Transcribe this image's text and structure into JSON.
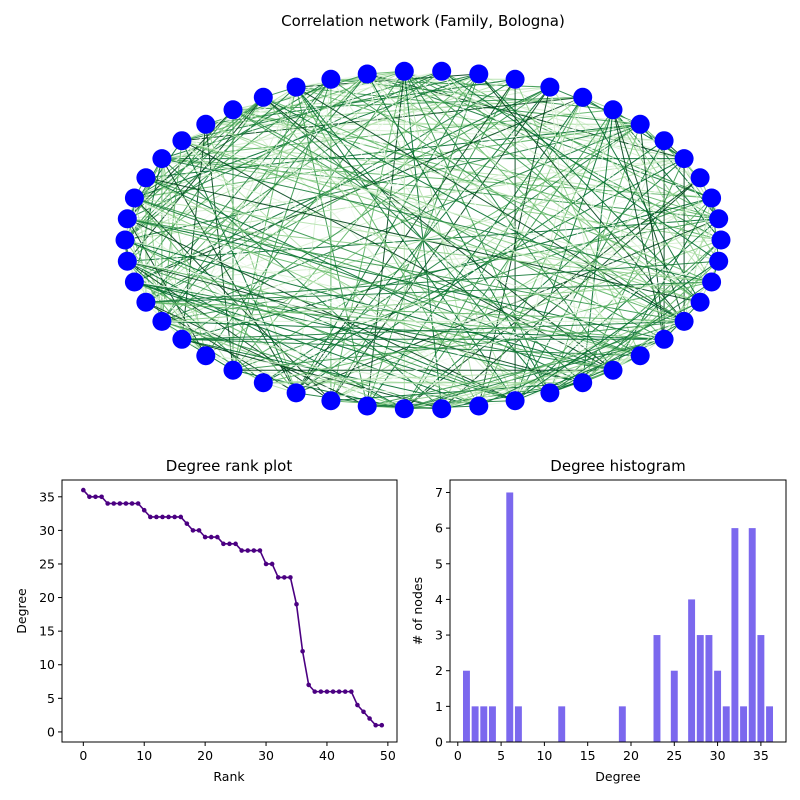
{
  "chart_data": [
    {
      "type": "network",
      "title": "Correlation network (Family, Bologna)",
      "node_count": 50,
      "node_color": "#0000ff",
      "edge_colormap": "Greens",
      "layout": "circular"
    },
    {
      "type": "line",
      "title": "Degree rank plot",
      "xlabel": "Rank",
      "ylabel": "Degree",
      "xlim": [
        -3.5,
        51.5
      ],
      "ylim": [
        -1.5,
        37.5
      ],
      "xticks": [
        0,
        10,
        20,
        30,
        40,
        50
      ],
      "yticks": [
        0,
        5,
        10,
        15,
        20,
        25,
        30,
        35
      ],
      "line_color": "#4b0082",
      "marker": "dot",
      "series": [
        {
          "x": [
            0,
            1,
            2,
            3,
            4,
            5,
            6,
            7,
            8,
            9,
            10,
            11,
            12,
            13,
            14,
            15,
            16,
            17,
            18,
            19,
            20,
            21,
            22,
            23,
            24,
            25,
            26,
            27,
            28,
            29,
            30,
            31,
            32,
            33,
            34,
            35,
            36,
            37,
            38,
            39,
            40,
            41,
            42,
            43,
            44,
            45,
            46,
            47,
            48,
            49
          ],
          "values": [
            36,
            35,
            35,
            35,
            34,
            34,
            34,
            34,
            34,
            34,
            33,
            32,
            32,
            32,
            32,
            32,
            32,
            31,
            30,
            30,
            29,
            29,
            29,
            28,
            28,
            28,
            27,
            27,
            27,
            27,
            25,
            25,
            23,
            23,
            23,
            19,
            12,
            7,
            6,
            6,
            6,
            6,
            6,
            6,
            6,
            4,
            3,
            2,
            1,
            1
          ]
        }
      ],
      "grid": false
    },
    {
      "type": "bar",
      "title": "Degree histogram",
      "xlabel": "Degree",
      "ylabel": "# of nodes",
      "xlim": [
        -0.9,
        37.9
      ],
      "ylim": [
        0,
        7.35
      ],
      "xticks": [
        0,
        5,
        10,
        15,
        20,
        25,
        30,
        35
      ],
      "yticks": [
        0,
        1,
        2,
        3,
        4,
        5,
        6,
        7
      ],
      "bar_color": "#7b68ee",
      "categories": [
        1,
        2,
        3,
        4,
        6,
        7,
        12,
        19,
        23,
        25,
        27,
        28,
        29,
        30,
        31,
        32,
        33,
        34,
        35,
        36
      ],
      "values": [
        2,
        1,
        1,
        1,
        7,
        1,
        1,
        1,
        3,
        2,
        4,
        3,
        3,
        2,
        1,
        6,
        1,
        6,
        3,
        1
      ],
      "grid": false
    }
  ]
}
